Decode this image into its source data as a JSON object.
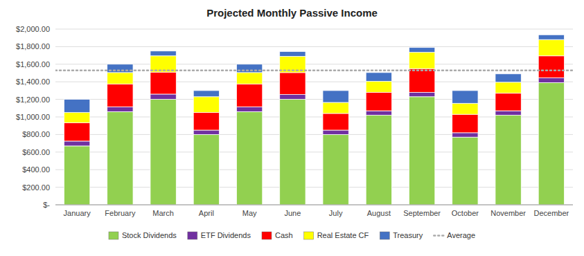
{
  "chart_data": {
    "type": "bar",
    "title": "Projected Monthly Passive Income",
    "stacked": true,
    "grid": true,
    "legend": "bottom",
    "categories": [
      "January",
      "February",
      "March",
      "April",
      "May",
      "June",
      "July",
      "August",
      "September",
      "October",
      "November",
      "December"
    ],
    "series": [
      {
        "name": "Stock Dividends",
        "color": "#92D050",
        "values": [
          670,
          1060,
          1200,
          800,
          1060,
          1200,
          800,
          1020,
          1230,
          770,
          1020,
          1390
        ]
      },
      {
        "name": "ETF Dividends",
        "color": "#7030A0",
        "values": [
          55,
          55,
          60,
          50,
          55,
          55,
          50,
          50,
          50,
          50,
          50,
          55
        ]
      },
      {
        "name": "Cash",
        "color": "#FF0000",
        "values": [
          210,
          260,
          250,
          200,
          260,
          250,
          190,
          210,
          270,
          210,
          200,
          250
        ]
      },
      {
        "name": "Real Estate CF",
        "color": "#FFFF00",
        "values": [
          115,
          130,
          185,
          180,
          130,
          185,
          125,
          125,
          185,
          125,
          125,
          185
        ]
      },
      {
        "name": "Treasury",
        "color": "#4472C4",
        "values": [
          150,
          95,
          55,
          70,
          95,
          55,
          135,
          100,
          55,
          145,
          95,
          55
        ]
      }
    ],
    "reference_lines": [
      {
        "name": "Average",
        "value": 1530,
        "color": "#AAAAAA",
        "line_style": "dotted"
      }
    ],
    "ylim": [
      0,
      2000
    ],
    "yticks": [
      {
        "value": 0,
        "label": "$-"
      },
      {
        "value": 200,
        "label": "$200.00"
      },
      {
        "value": 400,
        "label": "$400.00"
      },
      {
        "value": 600,
        "label": "$600.00"
      },
      {
        "value": 800,
        "label": "$800.00"
      },
      {
        "value": 1000,
        "label": "$1,000.00"
      },
      {
        "value": 1200,
        "label": "$1,200.00"
      },
      {
        "value": 1400,
        "label": "$1,400.00"
      },
      {
        "value": 1600,
        "label": "$1,600.00"
      },
      {
        "value": 1800,
        "label": "$1,800.00"
      },
      {
        "value": 2000,
        "label": "$2,000.00"
      }
    ]
  }
}
